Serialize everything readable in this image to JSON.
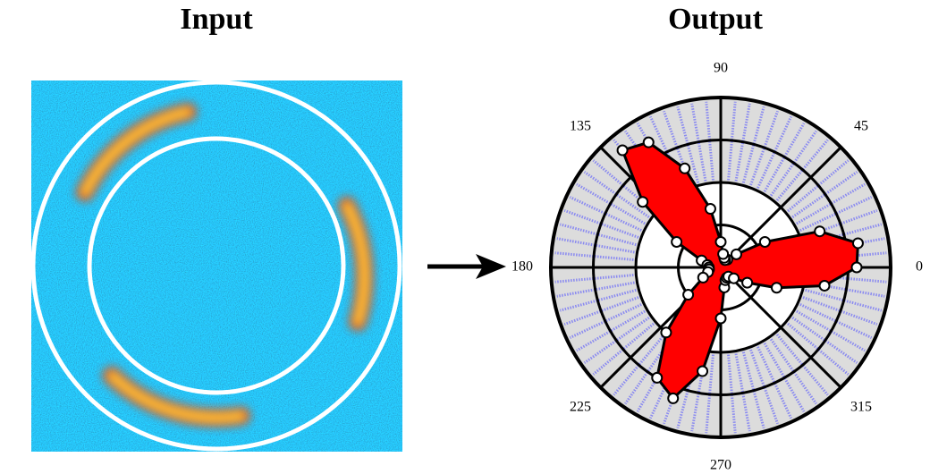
{
  "input": {
    "title": "Input"
  },
  "chart_data": {
    "type": "polar",
    "title": "Output",
    "theta_ticks": [
      0,
      45,
      90,
      135,
      180,
      225,
      270,
      315
    ],
    "rlim": [
      0,
      1
    ],
    "rticks": [
      0.25,
      0.5,
      0.75,
      1
    ],
    "fill_color": "#ff0000",
    "marker_color": "#ffffff",
    "theta": [
      0,
      10,
      20,
      30,
      40,
      50,
      60,
      70,
      80,
      90,
      100,
      110,
      120,
      130,
      140,
      150,
      160,
      170,
      180,
      190,
      200,
      210,
      220,
      230,
      240,
      250,
      260,
      270,
      280,
      290,
      300,
      310,
      320,
      330,
      340,
      350
    ],
    "r": [
      0.8,
      0.82,
      0.62,
      0.3,
      0.12,
      0.06,
      0.05,
      0.06,
      0.08,
      0.15,
      0.35,
      0.62,
      0.85,
      0.9,
      0.6,
      0.3,
      0.12,
      0.08,
      0.07,
      0.07,
      0.08,
      0.12,
      0.25,
      0.5,
      0.75,
      0.82,
      0.62,
      0.3,
      0.12,
      0.08,
      0.07,
      0.07,
      0.1,
      0.18,
      0.35,
      0.62
    ]
  }
}
